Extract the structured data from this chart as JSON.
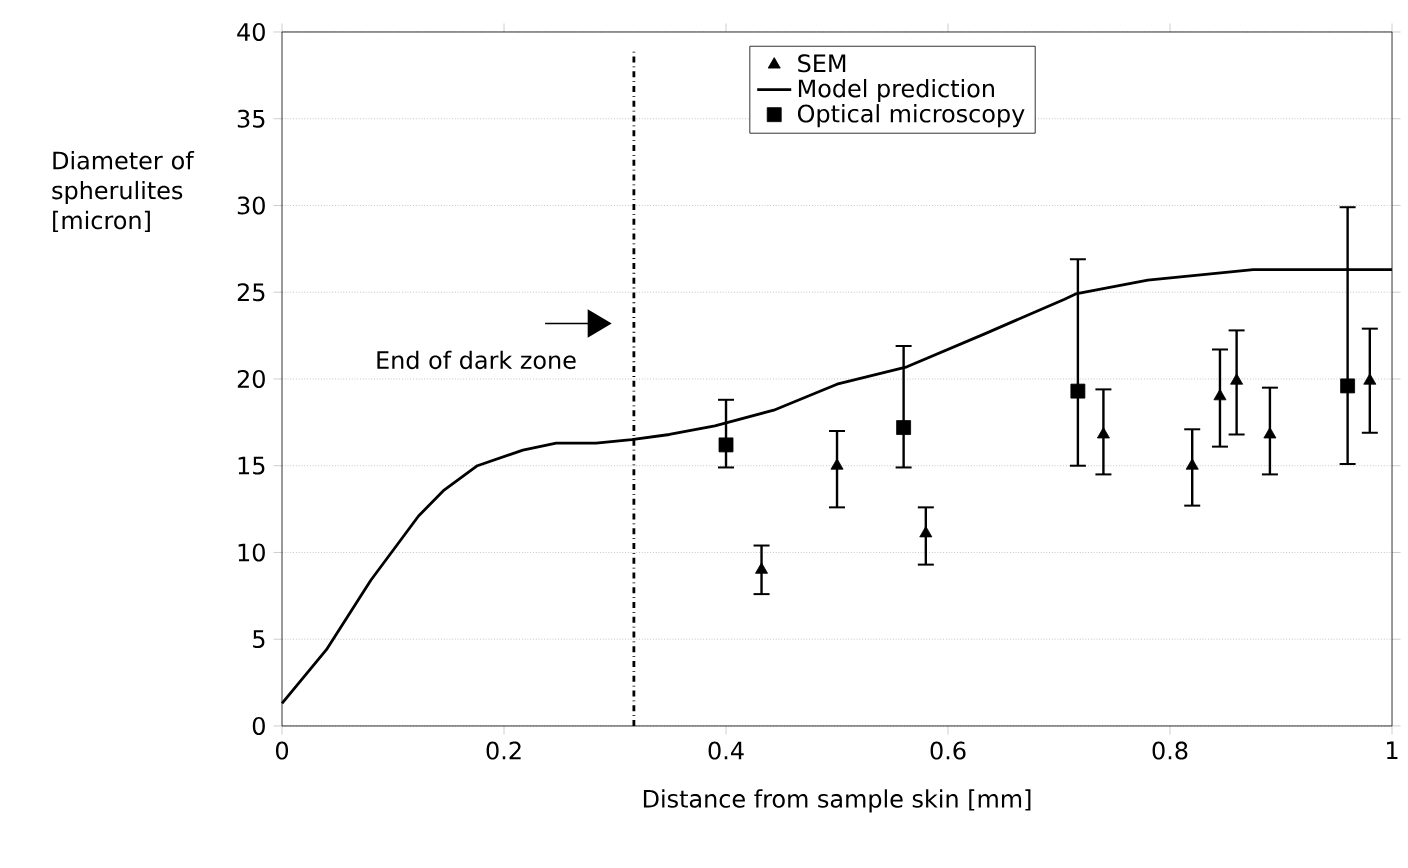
{
  "chart_data": {
    "type": "scatter",
    "xlabel": "Distance from sample skin [mm]",
    "ylabel": "Diameter of spherulites [micron]",
    "xlim": [
      0,
      1
    ],
    "ylim": [
      0,
      40
    ],
    "xticks": [
      0,
      0.2,
      0.4,
      0.6,
      0.8,
      1
    ],
    "yticks": [
      0,
      5,
      10,
      15,
      20,
      25,
      30,
      35,
      40
    ],
    "grid": "y",
    "legend": "top",
    "series": [
      {
        "name": "SEM",
        "marker": "triangle",
        "color": "#000000",
        "x": [
          0.432,
          0.5,
          0.58,
          0.74,
          0.82,
          0.845,
          0.86,
          0.89,
          0.98
        ],
        "values": [
          9.0,
          15.0,
          11.1,
          16.8,
          15.0,
          19.0,
          19.9,
          16.8,
          19.9
        ],
        "errors": [
          [
            7.6,
            10.4
          ],
          [
            12.6,
            17.0
          ],
          [
            9.3,
            12.6
          ],
          [
            14.5,
            19.4
          ],
          [
            12.7,
            17.1
          ],
          [
            16.1,
            21.7
          ],
          [
            16.8,
            22.8
          ],
          [
            14.5,
            19.5
          ],
          [
            16.9,
            22.9
          ]
        ]
      },
      {
        "name": "Model prediction",
        "type": "line",
        "marker": "none",
        "color": "#000000",
        "x": [
          0,
          0.04,
          0.08,
          0.123,
          0.146,
          0.176,
          0.217,
          0.247,
          0.283,
          0.315,
          0.349,
          0.39,
          0.443,
          0.5,
          0.563,
          0.633,
          0.705,
          0.715,
          0.78,
          0.875,
          1
        ],
        "values": [
          1.3,
          4.4,
          8.4,
          12.1,
          13.6,
          15.0,
          15.9,
          16.3,
          16.3,
          16.5,
          16.8,
          17.3,
          18.2,
          19.7,
          20.7,
          22.6,
          24.6,
          24.9,
          25.7,
          26.3,
          26.3
        ]
      },
      {
        "name": "Optical microscopy",
        "marker": "square",
        "color": "#000000",
        "x": [
          0.4,
          0.56,
          0.717,
          0.96
        ],
        "values": [
          16.2,
          17.2,
          19.3,
          19.6
        ],
        "errors": [
          [
            14.9,
            18.8
          ],
          [
            14.9,
            21.9
          ],
          [
            15.0,
            26.9
          ],
          [
            15.1,
            29.9
          ]
        ]
      }
    ],
    "ref_lines": [
      {
        "axis": "x",
        "value": 0.317,
        "label": "End of dark zone",
        "line_style": "dashed",
        "color": "#000000"
      }
    ]
  }
}
